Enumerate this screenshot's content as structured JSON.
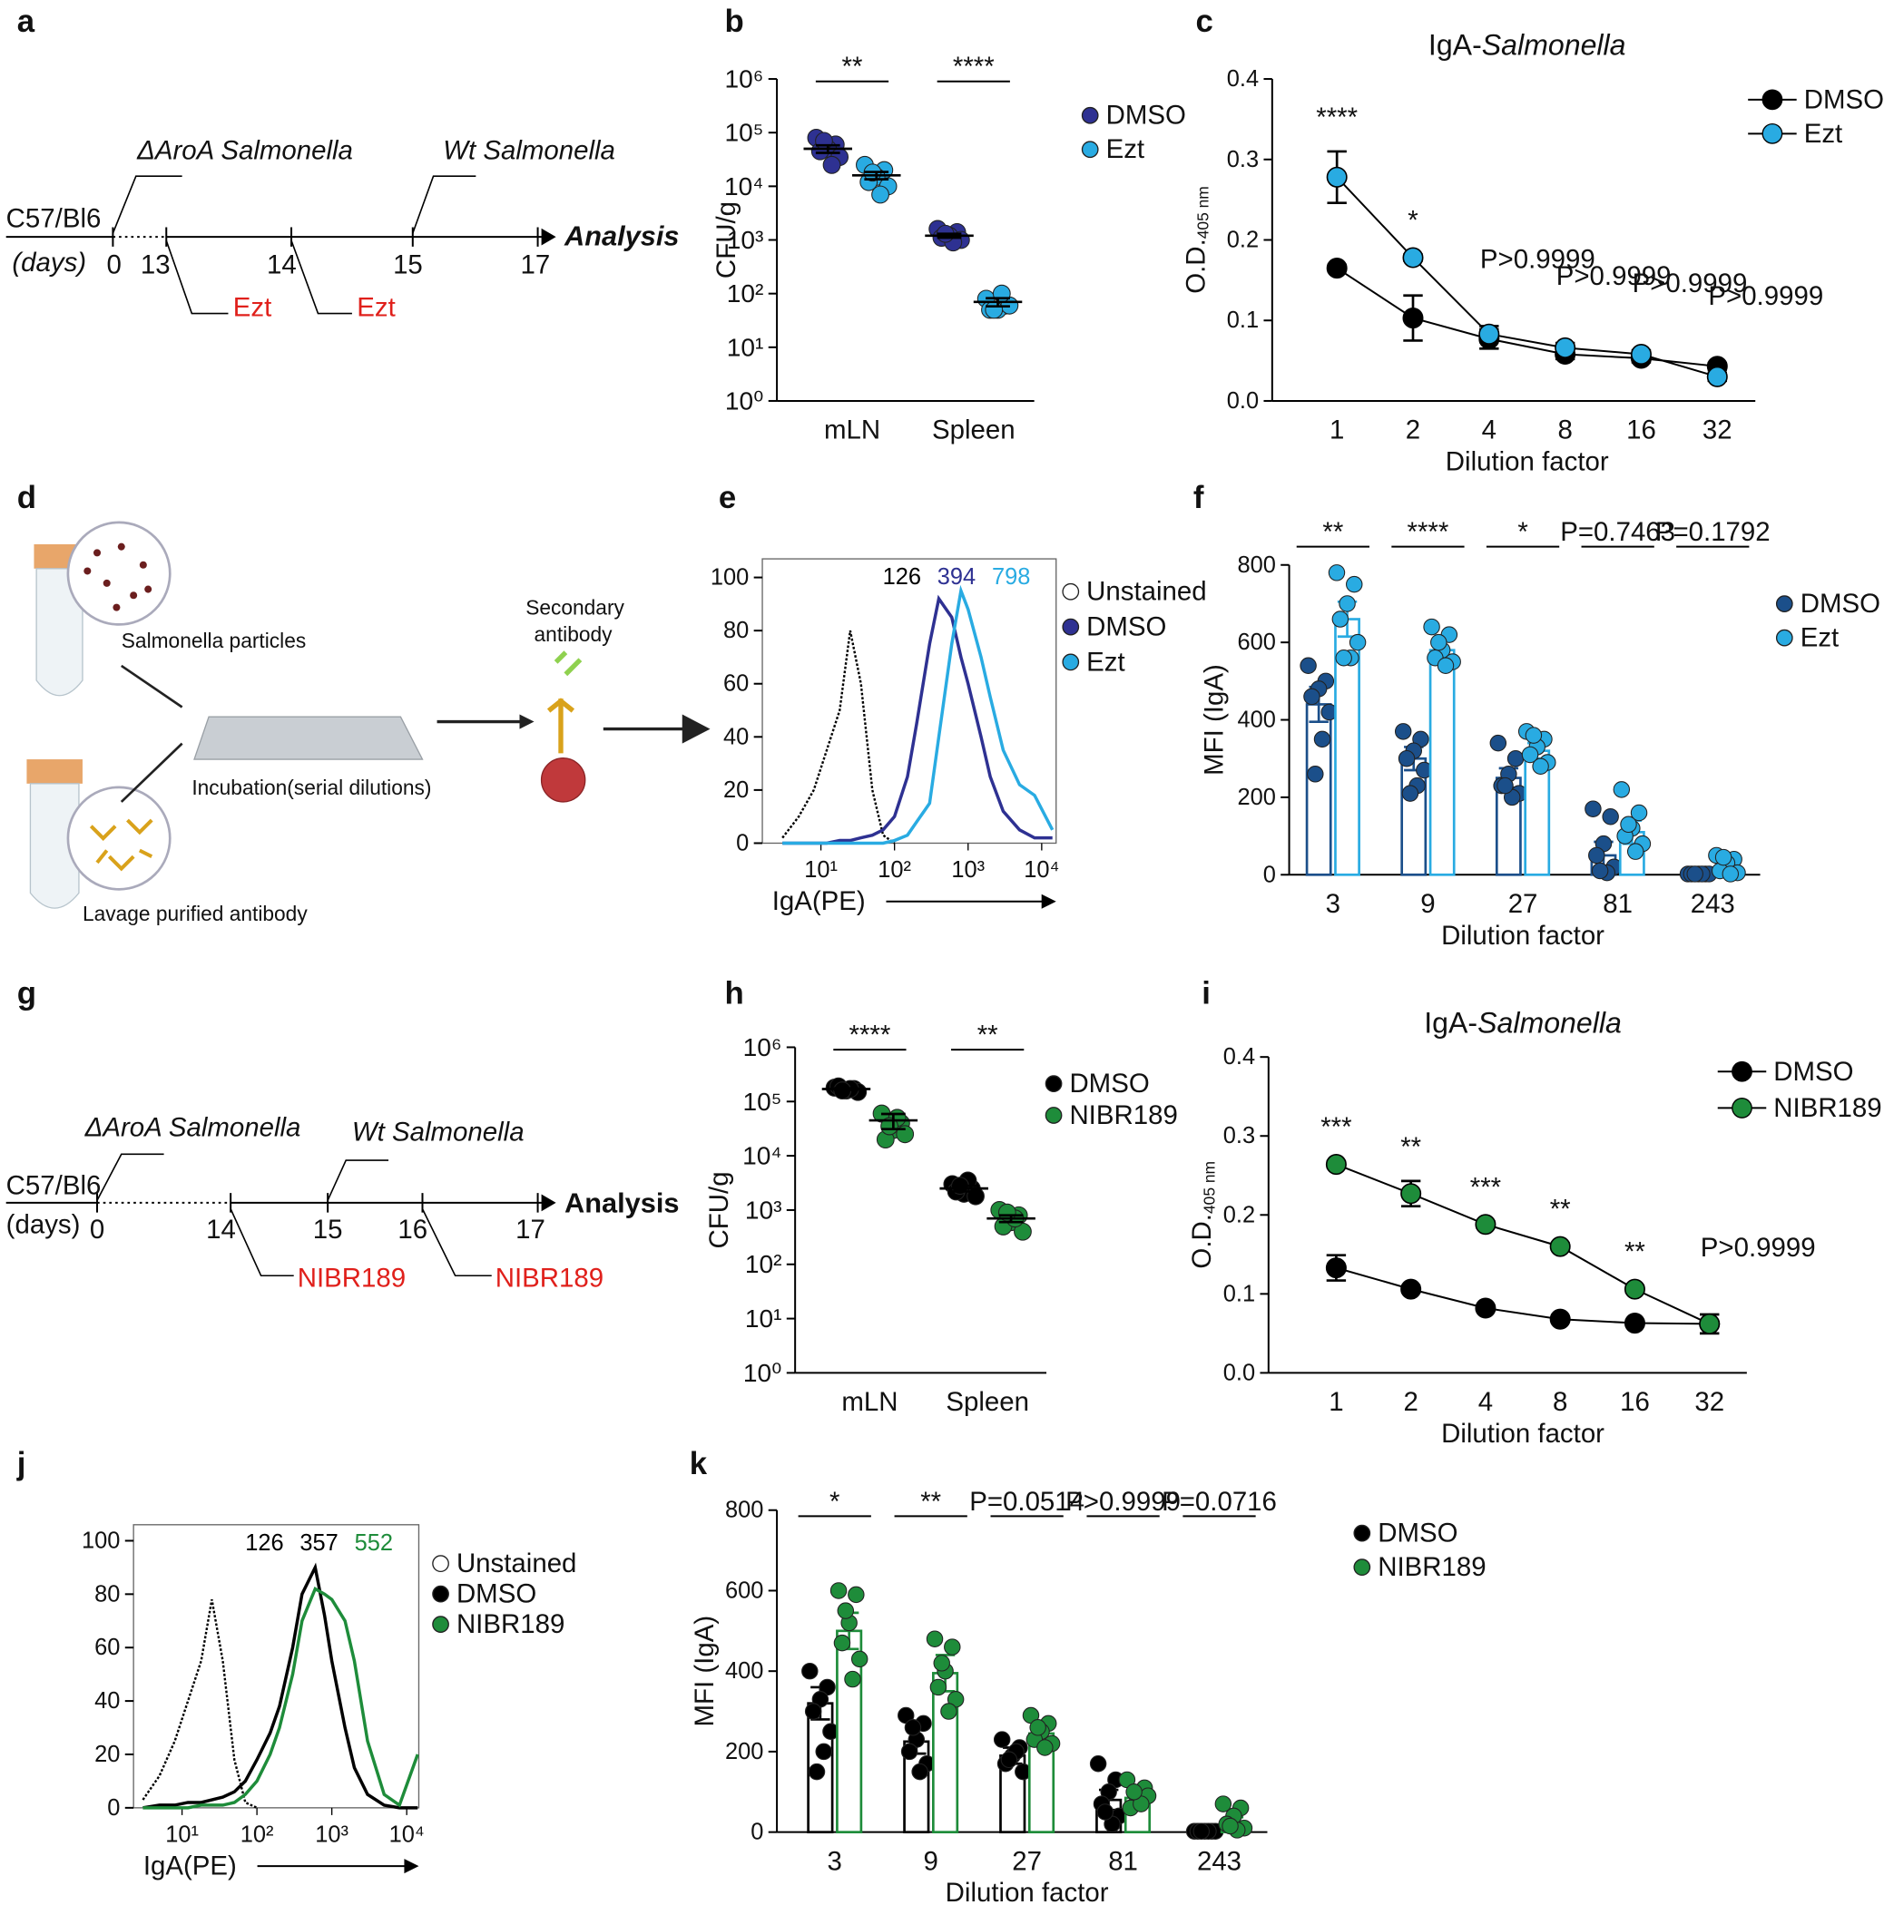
{
  "diagrams": {
    "a": {
      "panel_label": "a",
      "strain": "C57/Bl6",
      "days_label": "(days)",
      "first_infection": "ΔAroA Salmonella",
      "second_infection": "Wt Salmonella",
      "days": [
        0,
        13,
        14,
        15,
        17
      ],
      "treatments": [
        "Ezt",
        "Ezt"
      ],
      "endpoint": "Analysis"
    },
    "d": {
      "panel_label": "d",
      "particles": "Salmonella particles",
      "antibody": "Lavage purified antibody",
      "incubation": "Incubation(serial dilutions)",
      "secondary": [
        "Secondary",
        "antibody"
      ]
    },
    "g": {
      "panel_label": "g",
      "strain": "C57/Bl6",
      "days_label": "(days)",
      "first_infection": "ΔAroA Salmonella",
      "second_infection": "Wt Salmonella",
      "days": [
        0,
        14,
        15,
        16,
        17
      ],
      "treatments": [
        "NIBR189",
        "NIBR189"
      ],
      "endpoint": "Analysis"
    }
  },
  "chart_data": [
    {
      "panel_label": "b",
      "type": "scatter",
      "categories": [
        "mLN",
        "Spleen"
      ],
      "ylabel": "CFU/g",
      "ylog": true,
      "ylim": [
        1,
        1000000
      ],
      "yticks": [
        {
          "value": 1,
          "label": "10⁰"
        },
        {
          "value": 10,
          "label": "10¹"
        },
        {
          "value": 100,
          "label": "10²"
        },
        {
          "value": 1000,
          "label": "10³"
        },
        {
          "value": 10000,
          "label": "10⁴"
        },
        {
          "value": 100000,
          "label": "10⁵"
        },
        {
          "value": 1000000,
          "label": "10⁶"
        }
      ],
      "significance": [
        "**",
        "****"
      ],
      "series": [
        {
          "name": "DMSO",
          "color": "#2e3192",
          "values": [
            50000,
            1200
          ],
          "errors": [
            8000,
            100
          ],
          "points": [
            [
              80000,
              60000,
              50000,
              45000,
              35000,
              25000,
              70000
            ],
            [
              1600,
              1400,
              1200,
              1100,
              1000,
              900,
              1300
            ]
          ]
        },
        {
          "name": "Ezt",
          "color": "#29abe2",
          "values": [
            16000,
            70
          ],
          "errors": [
            2500,
            12
          ],
          "points": [
            [
              25000,
              20000,
              15000,
              12000,
              10000,
              7000,
              18000
            ],
            [
              80,
              60,
              50,
              50,
              60,
              100,
              50
            ]
          ]
        }
      ]
    },
    {
      "panel_label": "c",
      "type": "line",
      "title": "IgA-",
      "title_italic": "Salmonella",
      "categories": [
        "1",
        "2",
        "4",
        "8",
        "16",
        "32"
      ],
      "xlabel": "Dilution factor",
      "ylabel": "O.D.",
      "ylabel_sub": "405 nm",
      "ylim": [
        0,
        0.4
      ],
      "yticks": [
        {
          "value": 0,
          "label": "0.0"
        },
        0.1,
        0.2,
        0.3,
        0.4
      ],
      "significance": [
        "****",
        "*",
        "P>0.9999",
        "P>0.9999",
        "P>0.9999",
        "P>0.9999"
      ],
      "series": [
        {
          "name": "DMSO",
          "color": "#000000",
          "values": [
            0.165,
            0.103,
            0.077,
            0.058,
            0.053,
            0.043
          ],
          "errors": [
            0.004,
            0.028,
            0.012,
            0.006,
            0.005,
            0.004
          ]
        },
        {
          "name": "Ezt",
          "color": "#29abe2",
          "values": [
            0.278,
            0.178,
            0.083,
            0.066,
            0.058,
            0.03
          ],
          "errors": [
            0.032,
            0.004,
            0.01,
            0.006,
            0.005,
            0.005
          ]
        }
      ]
    },
    {
      "panel_label": "e",
      "type": "density",
      "x": [
        3,
        5,
        8,
        12,
        18,
        25,
        35,
        50,
        70,
        100,
        150,
        200,
        300,
        400,
        600,
        800,
        1000,
        1500,
        2000,
        3000,
        5000,
        8000,
        14000
      ],
      "xlog": true,
      "xlim": [
        1.6,
        15700
      ],
      "xticks": [
        {
          "value": 10,
          "label": "10¹"
        },
        {
          "value": 100,
          "label": "10²"
        },
        {
          "value": 1000,
          "label": "10³"
        },
        {
          "value": 10000,
          "label": "10⁴"
        }
      ],
      "xlabel": "IgA(PE)",
      "ylim": [
        0,
        107
      ],
      "yticks": [
        0,
        20,
        40,
        60,
        80,
        100
      ],
      "series": [
        {
          "name": "Unstained",
          "color": "#000000",
          "line_style": "dotted",
          "mfi": 126,
          "values": [
            2,
            10,
            20,
            35,
            50,
            80,
            60,
            20,
            3,
            0,
            null,
            null,
            null,
            null,
            null,
            null,
            null,
            null,
            null,
            null,
            null,
            null,
            null
          ]
        },
        {
          "name": "DMSO",
          "color": "#2e3192",
          "mfi": 394,
          "values": [
            0,
            0,
            0,
            0,
            1,
            1,
            2,
            3,
            5,
            10,
            25,
            45,
            75,
            92,
            85,
            70,
            60,
            40,
            25,
            12,
            5,
            2,
            2
          ]
        },
        {
          "name": "Ezt",
          "color": "#29abe2",
          "mfi": 798,
          "values": [
            0,
            0,
            0,
            0,
            0,
            0,
            0,
            0,
            0,
            1,
            3,
            8,
            15,
            40,
            75,
            95,
            88,
            70,
            55,
            35,
            22,
            18,
            5
          ]
        }
      ]
    },
    {
      "panel_label": "f",
      "type": "bar",
      "categories": [
        "3",
        "9",
        "27",
        "81",
        "243"
      ],
      "xlabel": "Dilution factor",
      "ylabel": "MFI (IgA)",
      "ylim": [
        0,
        800
      ],
      "yticks": [
        0,
        200,
        400,
        600,
        800
      ],
      "significance": [
        "**",
        "****",
        "*",
        "P=0.7463",
        "P=0.1792"
      ],
      "series": [
        {
          "name": "DMSO",
          "color": "#1b4f8a",
          "values": [
            440,
            300,
            250,
            50,
            2
          ],
          "errors": [
            45,
            30,
            25,
            35,
            1
          ],
          "points": [
            [
              540,
              500,
              480,
              460,
              420,
              350,
              260
            ],
            [
              370,
              350,
              320,
              300,
              270,
              230,
              210
            ],
            [
              340,
              300,
              260,
              230,
              210,
              200,
              230
            ],
            [
              170,
              150,
              80,
              50,
              20,
              5,
              10
            ],
            [
              2,
              2,
              2,
              2,
              2,
              2,
              2
            ]
          ]
        },
        {
          "name": "Ezt",
          "color": "#29abe2",
          "values": [
            660,
            580,
            320,
            110,
            20
          ],
          "errors": [
            45,
            25,
            20,
            30,
            15
          ],
          "points": [
            [
              780,
              750,
              700,
              660,
              600,
              560,
              560
            ],
            [
              640,
              620,
              580,
              560,
              550,
              540,
              600
            ],
            [
              370,
              350,
              330,
              310,
              290,
              280,
              360
            ],
            [
              220,
              160,
              120,
              100,
              80,
              60,
              130
            ],
            [
              50,
              40,
              30,
              10,
              5,
              2,
              45
            ]
          ]
        }
      ]
    },
    {
      "panel_label": "h",
      "type": "scatter",
      "categories": [
        "mLN",
        "Spleen"
      ],
      "ylabel": "CFU/g",
      "ylog": true,
      "ylim": [
        1,
        1000000
      ],
      "yticks": [
        {
          "value": 1,
          "label": "10⁰"
        },
        {
          "value": 10,
          "label": "10¹"
        },
        {
          "value": 100,
          "label": "10²"
        },
        {
          "value": 1000,
          "label": "10³"
        },
        {
          "value": 10000,
          "label": "10⁴"
        },
        {
          "value": 100000,
          "label": "10⁵"
        },
        {
          "value": 1000000,
          "label": "10⁶"
        }
      ],
      "significance": [
        "****",
        "**"
      ],
      "series": [
        {
          "name": "DMSO",
          "color": "#000000",
          "values": [
            170000,
            2500
          ],
          "errors": [
            6000,
            300
          ],
          "points": [
            [
              180000,
              170000,
              160000,
              190000,
              150000,
              170000,
              160000
            ],
            [
              3000,
              2500,
              2000,
              2200,
              1800,
              3500,
              2800
            ]
          ]
        },
        {
          "name": "NIBR189",
          "color": "#1e8c3a",
          "values": [
            45000,
            700
          ],
          "errors": [
            14000,
            100
          ],
          "points": [
            [
              60000,
              40000,
              30000,
              20000,
              25000,
              50000,
              35000
            ],
            [
              1000,
              800,
              600,
              500,
              400,
              700,
              900
            ]
          ]
        }
      ]
    },
    {
      "panel_label": "i",
      "type": "line",
      "title": "IgA-",
      "title_italic": "Salmonella",
      "categories": [
        "1",
        "2",
        "4",
        "8",
        "16",
        "32"
      ],
      "xlabel": "Dilution factor",
      "ylabel": "O.D.",
      "ylabel_sub": "405 nm",
      "ylim": [
        0,
        0.4
      ],
      "yticks": [
        {
          "value": 0,
          "label": "0.0"
        },
        0.1,
        0.2,
        0.3,
        0.4
      ],
      "significance": [
        "***",
        "**",
        "***",
        "**",
        "**",
        "P>0.9999"
      ],
      "series": [
        {
          "name": "DMSO",
          "color": "#000000",
          "values": [
            0.133,
            0.106,
            0.082,
            0.068,
            0.063,
            0.062
          ],
          "errors": [
            0.016,
            0.004,
            0.003,
            0.003,
            0.003,
            0.003
          ]
        },
        {
          "name": "NIBR189",
          "color": "#1e8c3a",
          "values": [
            0.264,
            0.227,
            0.188,
            0.16,
            0.106,
            0.062
          ],
          "errors": [
            0.004,
            0.016,
            0.004,
            0.004,
            0.004,
            0.012
          ]
        }
      ]
    },
    {
      "panel_label": "j",
      "type": "density",
      "x": [
        3,
        5,
        8,
        12,
        18,
        25,
        35,
        50,
        70,
        100,
        150,
        200,
        300,
        400,
        600,
        800,
        1000,
        1500,
        2000,
        3000,
        5000,
        8000,
        14000
      ],
      "xlog": true,
      "xlim": [
        2.25,
        14500
      ],
      "xticks": [
        {
          "value": 10,
          "label": "10¹"
        },
        {
          "value": 100,
          "label": "10²"
        },
        {
          "value": 1000,
          "label": "10³"
        },
        {
          "value": 10000,
          "label": "10⁴"
        }
      ],
      "xlabel": "IgA(PE)",
      "ylim": [
        0,
        106
      ],
      "yticks": [
        0,
        20,
        40,
        60,
        80,
        100
      ],
      "series": [
        {
          "name": "Unstained",
          "color": "#000000",
          "line_style": "dotted",
          "mfi": 126,
          "values": [
            3,
            12,
            25,
            40,
            55,
            78,
            55,
            18,
            2,
            0,
            null,
            null,
            null,
            null,
            null,
            null,
            null,
            null,
            null,
            null,
            null,
            null,
            null
          ]
        },
        {
          "name": "DMSO",
          "color": "#000000",
          "mfi": 357,
          "values": [
            0,
            1,
            1,
            2,
            2,
            3,
            4,
            6,
            10,
            18,
            28,
            38,
            60,
            80,
            90,
            72,
            55,
            30,
            15,
            5,
            1,
            0,
            0
          ]
        },
        {
          "name": "NIBR189",
          "color": "#1e8c3a",
          "mfi": 552,
          "values": [
            0,
            0,
            0,
            0,
            1,
            1,
            1,
            2,
            5,
            10,
            20,
            30,
            50,
            70,
            82,
            80,
            78,
            70,
            55,
            25,
            5,
            1,
            20
          ]
        }
      ]
    },
    {
      "panel_label": "k",
      "type": "bar",
      "categories": [
        "3",
        "9",
        "27",
        "81",
        "243"
      ],
      "xlabel": "Dilution factor",
      "ylabel": "MFI (IgA)",
      "ylim": [
        0,
        800
      ],
      "yticks": [
        0,
        200,
        400,
        600,
        800
      ],
      "significance": [
        "*",
        "**",
        "P=0.0514",
        "P>0.9999",
        "P=0.0716"
      ],
      "series": [
        {
          "name": "DMSO",
          "color": "#000000",
          "values": [
            320,
            225,
            190,
            80,
            2
          ],
          "errors": [
            40,
            30,
            20,
            25,
            1
          ],
          "points": [
            [
              400,
              360,
              330,
              300,
              250,
              200,
              150
            ],
            [
              290,
              270,
              230,
              200,
              170,
              150,
              260
            ],
            [
              230,
              210,
              190,
              170,
              150,
              200,
              180
            ],
            [
              170,
              130,
              100,
              70,
              40,
              20,
              50
            ],
            [
              2,
              2,
              2,
              2,
              2,
              2,
              2
            ]
          ]
        },
        {
          "name": "NIBR189",
          "color": "#1e8c3a",
          "values": [
            500,
            395,
            245,
            85,
            25
          ],
          "errors": [
            45,
            45,
            20,
            12,
            12
          ],
          "points": [
            [
              600,
              590,
              520,
              470,
              430,
              380,
              550
            ],
            [
              480,
              460,
              400,
              360,
              330,
              300,
              420
            ],
            [
              290,
              270,
              250,
              230,
              220,
              210,
              260
            ],
            [
              130,
              110,
              80,
              60,
              90,
              70,
              100
            ],
            [
              70,
              60,
              40,
              20,
              10,
              5,
              15
            ]
          ]
        }
      ]
    }
  ]
}
